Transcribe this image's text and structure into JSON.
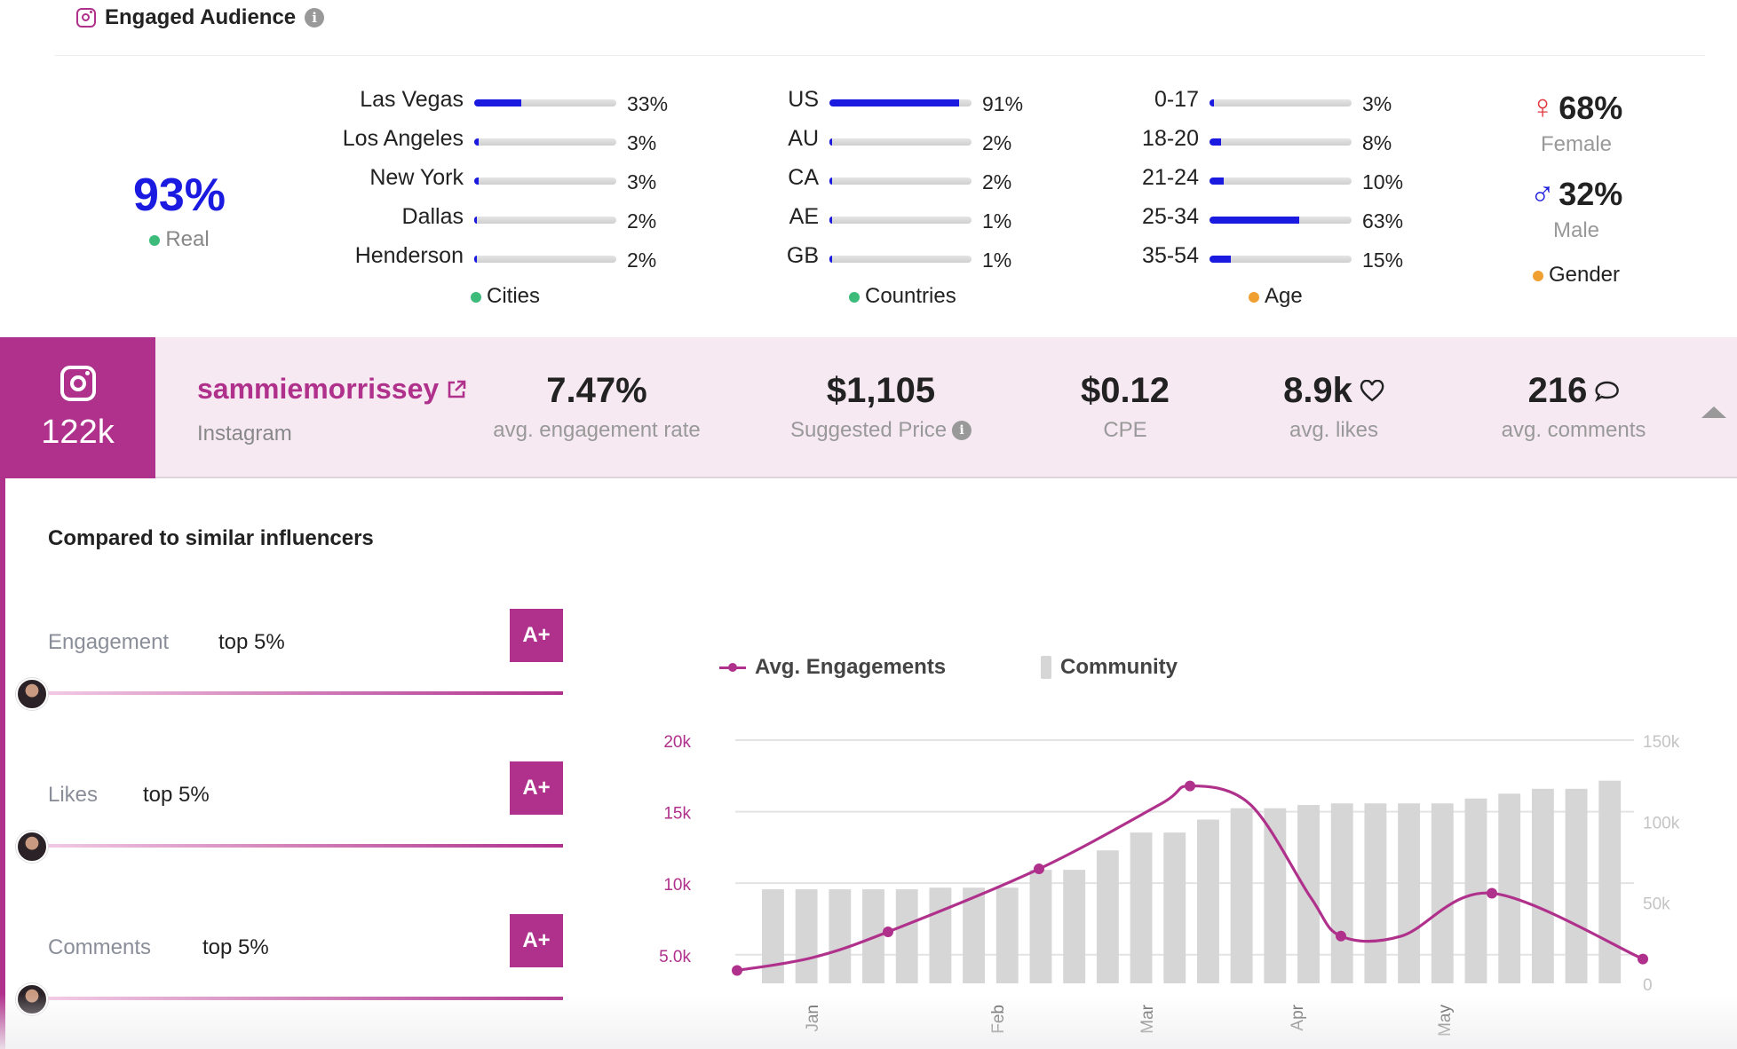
{
  "header": {
    "title": "Engaged Audience"
  },
  "real": {
    "value": "93%",
    "label": "Real",
    "dot_color": "#3dbb7a"
  },
  "cities": {
    "caption": "Cities",
    "dot_color": "#3dbb7a",
    "items": [
      {
        "label": "Las Vegas",
        "pct": "33%",
        "value": 33
      },
      {
        "label": "Los Angeles",
        "pct": "3%",
        "value": 3
      },
      {
        "label": "New York",
        "pct": "3%",
        "value": 3
      },
      {
        "label": "Dallas",
        "pct": "2%",
        "value": 2
      },
      {
        "label": "Henderson",
        "pct": "2%",
        "value": 2
      }
    ]
  },
  "countries": {
    "caption": "Countries",
    "dot_color": "#3dbb7a",
    "items": [
      {
        "label": "US",
        "pct": "91%",
        "value": 91
      },
      {
        "label": "AU",
        "pct": "2%",
        "value": 2
      },
      {
        "label": "CA",
        "pct": "2%",
        "value": 2
      },
      {
        "label": "AE",
        "pct": "1%",
        "value": 1
      },
      {
        "label": "GB",
        "pct": "1%",
        "value": 1
      }
    ]
  },
  "age": {
    "caption": "Age",
    "dot_color": "#f0a030",
    "items": [
      {
        "label": "0-17",
        "pct": "3%",
        "value": 3
      },
      {
        "label": "18-20",
        "pct": "8%",
        "value": 8
      },
      {
        "label": "21-24",
        "pct": "10%",
        "value": 10
      },
      {
        "label": "25-34",
        "pct": "63%",
        "value": 63
      },
      {
        "label": "35-54",
        "pct": "15%",
        "value": 15
      }
    ]
  },
  "gender": {
    "female_value": "68%",
    "female_label": "Female",
    "male_value": "32%",
    "male_label": "Male",
    "caption": "Gender",
    "dot_color": "#f0a030"
  },
  "profile": {
    "followers": "122k",
    "handle": "sammiemorrissey",
    "platform": "Instagram",
    "engagement_rate": "7.47%",
    "engagement_rate_label": "avg. engagement rate",
    "price": "$1,105",
    "price_label": "Suggested Price",
    "cpe": "$0.12",
    "cpe_label": "CPE",
    "likes": "8.9k",
    "likes_label": "avg. likes",
    "comments": "216",
    "comments_label": "avg. comments"
  },
  "comparison": {
    "title": "Compared to similar influencers",
    "items": [
      {
        "name": "Engagement",
        "rank": "top 5%",
        "grade": "A+"
      },
      {
        "name": "Likes",
        "rank": "top 5%",
        "grade": "A+"
      },
      {
        "name": "Comments",
        "rank": "top 5%",
        "grade": "A+"
      }
    ]
  },
  "colors": {
    "accent": "#b0318c",
    "bar_blue": "#1a1ae0",
    "community_bar": "#d6d6d6"
  },
  "chart_data": {
    "type": "line+bar",
    "legend": [
      "Avg. Engagements",
      "Community"
    ],
    "left_axis": {
      "ticks": [
        "5.0k",
        "10k",
        "15k",
        "20k"
      ],
      "ylim": [
        3000,
        20000
      ]
    },
    "right_axis": {
      "ticks": [
        "0",
        "50k",
        "100k",
        "150k"
      ],
      "ylim": [
        0,
        150000
      ]
    },
    "x_ticks": [
      "Jan",
      "Feb",
      "Mar",
      "Apr",
      "May"
    ],
    "series": [
      {
        "name": "Avg. Engagements",
        "points": [
          {
            "x": 0.0,
            "y": 3900
          },
          {
            "x": 0.5,
            "y": 4800
          },
          {
            "x": 1.0,
            "y": 6600
          },
          {
            "x": 2.0,
            "y": 11000
          },
          {
            "x": 2.8,
            "y": 15500
          },
          {
            "x": 3.0,
            "y": 16800
          },
          {
            "x": 3.4,
            "y": 15500
          },
          {
            "x": 3.8,
            "y": 9000
          },
          {
            "x": 4.0,
            "y": 6300
          },
          {
            "x": 4.4,
            "y": 6300
          },
          {
            "x": 5.0,
            "y": 9300
          },
          {
            "x": 6.0,
            "y": 4700
          }
        ],
        "marked": [
          0,
          2,
          3,
          5,
          8,
          10,
          11
        ]
      },
      {
        "name": "Community",
        "values": [
          58000,
          58000,
          58000,
          58000,
          58000,
          59000,
          59000,
          59000,
          70000,
          70000,
          82000,
          93000,
          93000,
          101000,
          108000,
          108000,
          110000,
          111000,
          111000,
          111000,
          111000,
          114000,
          117000,
          120000,
          120000,
          125000
        ]
      }
    ]
  }
}
